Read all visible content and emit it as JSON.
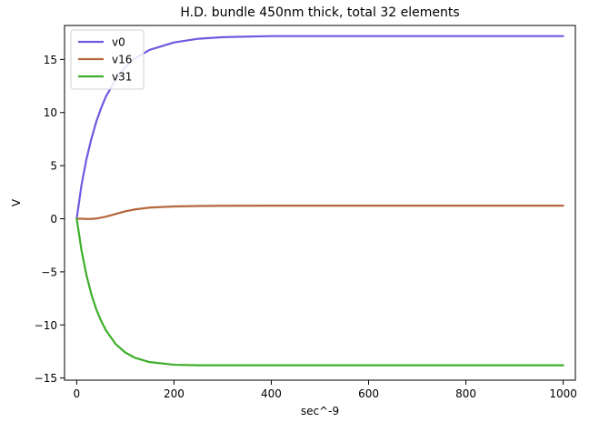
{
  "chart_data": {
    "type": "line",
    "title": "H.D. bundle 450nm thick, total 32 elements",
    "xlabel": "sec^-9",
    "ylabel": "V",
    "xlim": [
      -25,
      1025
    ],
    "ylim": [
      -15.2,
      18.2
    ],
    "xticks": [
      0,
      200,
      400,
      600,
      800,
      1000
    ],
    "xtick_labels": [
      "0",
      "200",
      "400",
      "600",
      "800",
      "1000"
    ],
    "yticks": [
      -15,
      -10,
      -5,
      0,
      5,
      10,
      15
    ],
    "ytick_labels": [
      "−15",
      "−10",
      "−5",
      "0",
      "5",
      "10",
      "15"
    ],
    "legend_position": "top-left",
    "grid": false,
    "series": [
      {
        "name": "v0",
        "color": "#7058e0",
        "x": [
          0,
          10,
          20,
          30,
          40,
          50,
          60,
          80,
          100,
          120,
          150,
          200,
          250,
          300,
          400,
          500,
          600,
          700,
          800,
          900,
          1000
        ],
        "y": [
          0,
          3.2,
          5.6,
          7.5,
          9.1,
          10.4,
          11.5,
          13.1,
          14.3,
          15.1,
          15.9,
          16.6,
          16.95,
          17.1,
          17.2,
          17.2,
          17.2,
          17.2,
          17.2,
          17.2,
          17.2
        ]
      },
      {
        "name": "v16",
        "color": "#b5673e",
        "x": [
          0,
          10,
          20,
          30,
          40,
          50,
          60,
          70,
          80,
          100,
          120,
          150,
          200,
          250,
          300,
          400,
          500,
          600,
          700,
          800,
          900,
          1000
        ],
        "y": [
          0,
          0,
          -0.02,
          -0.02,
          0.02,
          0.1,
          0.2,
          0.32,
          0.45,
          0.7,
          0.88,
          1.05,
          1.16,
          1.2,
          1.22,
          1.23,
          1.23,
          1.23,
          1.23,
          1.23,
          1.23,
          1.23
        ]
      },
      {
        "name": "v31",
        "color": "#3eae2a",
        "x": [
          0,
          10,
          20,
          30,
          40,
          50,
          60,
          80,
          100,
          120,
          150,
          200,
          250,
          300,
          400,
          500,
          600,
          700,
          800,
          900,
          1000
        ],
        "y": [
          0,
          -3.0,
          -5.3,
          -7.1,
          -8.5,
          -9.6,
          -10.5,
          -11.8,
          -12.6,
          -13.1,
          -13.5,
          -13.75,
          -13.8,
          -13.8,
          -13.8,
          -13.8,
          -13.8,
          -13.8,
          -13.8,
          -13.8,
          -13.8
        ]
      }
    ]
  }
}
